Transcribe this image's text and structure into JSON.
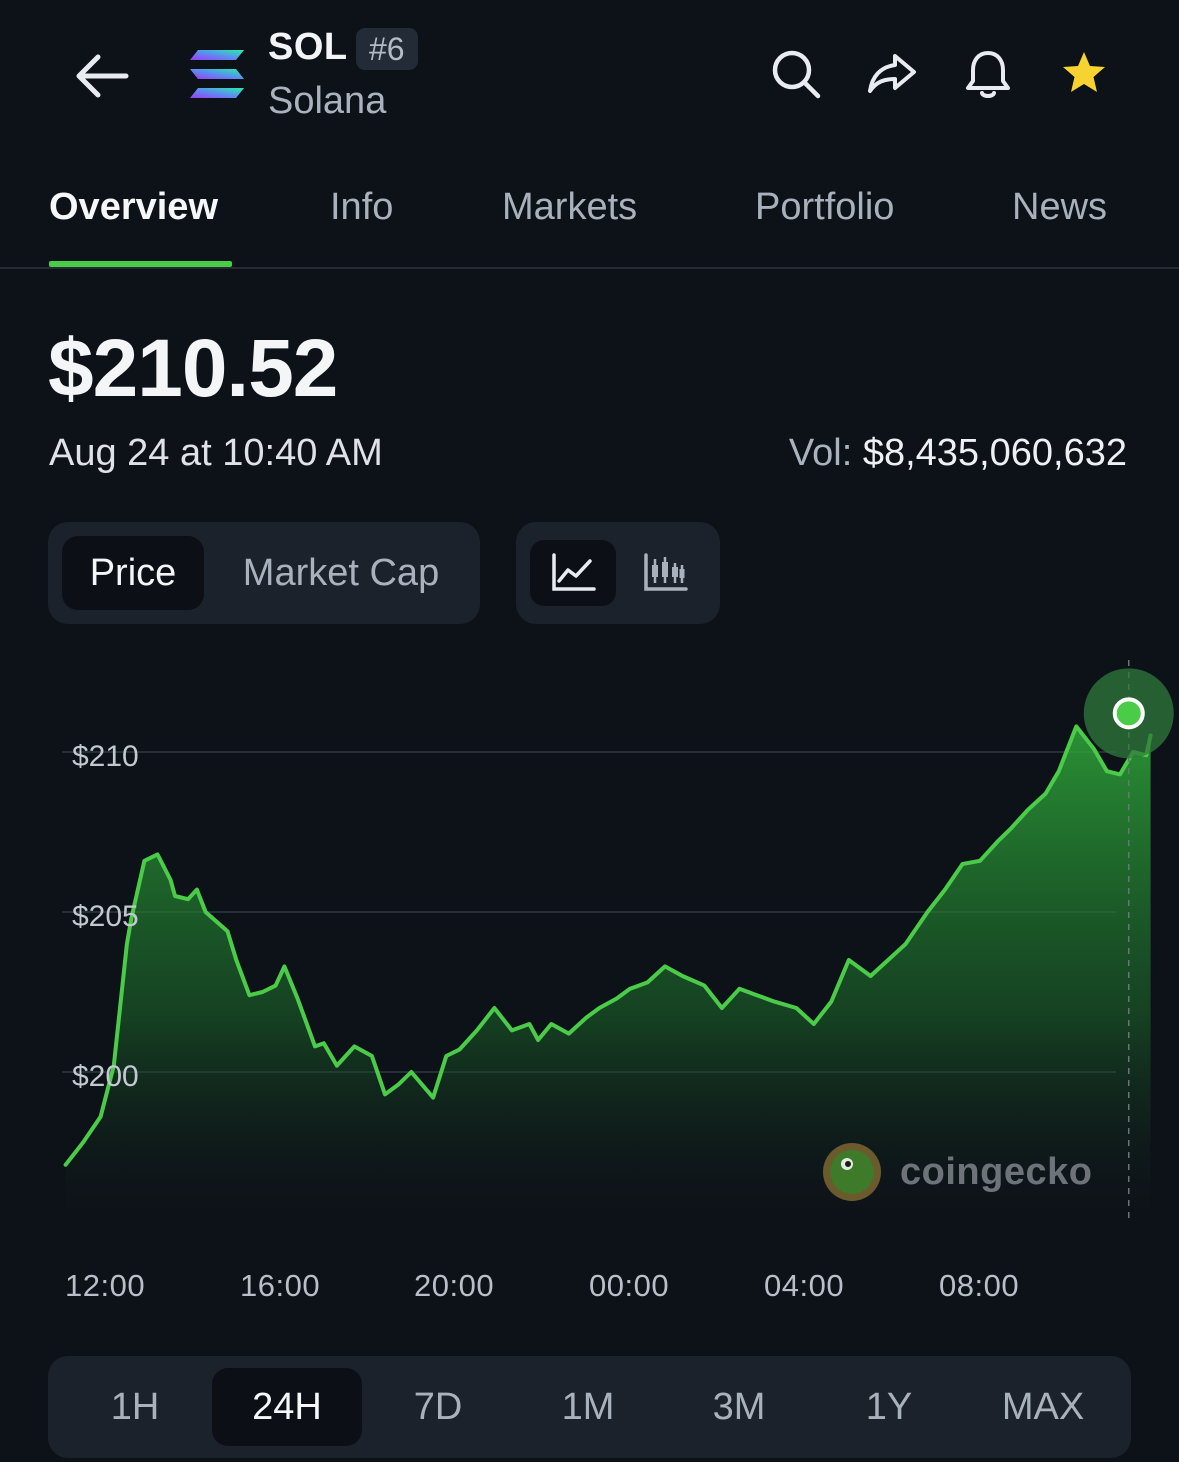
{
  "header": {
    "ticker": "SOL",
    "rank": "#6",
    "name": "Solana",
    "icons": [
      "back-arrow-icon",
      "search-icon",
      "share-icon",
      "bell-icon",
      "star-icon"
    ],
    "favorite_color": "#f7d331"
  },
  "tabs": [
    {
      "label": "Overview",
      "active": true
    },
    {
      "label": "Info",
      "active": false
    },
    {
      "label": "Markets",
      "active": false
    },
    {
      "label": "Portfolio",
      "active": false
    },
    {
      "label": "News",
      "active": false
    }
  ],
  "price": {
    "value": "$210.52",
    "timestamp": "Aug 24 at 10:40 AM",
    "vol_label": "Vol:",
    "vol_value": "$8,435,060,632"
  },
  "metric_toggle": {
    "options": [
      "Price",
      "Market Cap"
    ],
    "selected": "Price"
  },
  "chart_style_toggle": {
    "options": [
      "line-chart-icon",
      "candlestick-chart-icon"
    ],
    "selected": "line-chart-icon"
  },
  "chart_data": {
    "type": "area",
    "title": "",
    "xlabel": "",
    "ylabel": "",
    "y_tick_labels": [
      "$210",
      "$205",
      "$200"
    ],
    "y_ticks": [
      210,
      205,
      200
    ],
    "x_tick_labels": [
      "12:00",
      "16:00",
      "20:00",
      "00:00",
      "04:00",
      "08:00"
    ],
    "x_ticks_hours": [
      0,
      4,
      8,
      12,
      16,
      20
    ],
    "ylim": [
      196.8,
      212
    ],
    "xlim_hours": [
      0,
      23.9
    ],
    "grid": true,
    "color": "#4bcc48",
    "series": [
      {
        "x_hours": [
          -0.9,
          -0.5,
          -0.1,
          0.2,
          0.5,
          0.6,
          0.9,
          1.2,
          1.5,
          1.6,
          1.9,
          2.1,
          2.3,
          2.8,
          3.0,
          3.3,
          3.6,
          3.9,
          4.1,
          4.4,
          4.8,
          5.0,
          5.3,
          5.7,
          6.1,
          6.4,
          6.7,
          7.0,
          7.5,
          7.8,
          8.1,
          8.5,
          8.9,
          9.3,
          9.7,
          9.9,
          10.2,
          10.6,
          11.0,
          11.3,
          11.7,
          12.0,
          12.4,
          12.8,
          13.2,
          13.7,
          14.1,
          14.5,
          14.9,
          15.3,
          15.8,
          16.2,
          16.6,
          17.0,
          17.5,
          17.9,
          18.3,
          18.8,
          19.2,
          19.6,
          20.0,
          20.4,
          20.7,
          21.1,
          21.5,
          21.8,
          22.2,
          22.6,
          22.9,
          23.2,
          23.5,
          23.8,
          23.9
        ],
        "values": [
          197.1,
          197.8,
          198.6,
          200.2,
          204.0,
          204.8,
          206.6,
          206.8,
          206.0,
          205.5,
          205.4,
          205.7,
          205.0,
          204.4,
          203.5,
          202.4,
          202.5,
          202.7,
          203.3,
          202.3,
          200.8,
          200.9,
          200.2,
          200.8,
          200.5,
          199.3,
          199.6,
          200.0,
          199.2,
          200.5,
          200.7,
          201.3,
          202.0,
          201.3,
          201.5,
          201.0,
          201.5,
          201.2,
          201.7,
          202.0,
          202.3,
          202.6,
          202.8,
          203.3,
          203.0,
          202.7,
          202.0,
          202.6,
          202.4,
          202.2,
          202.0,
          201.5,
          202.2,
          203.5,
          203.0,
          203.5,
          204.0,
          205.0,
          205.7,
          206.5,
          206.6,
          207.2,
          207.6,
          208.2,
          208.7,
          209.4,
          210.8,
          210.1,
          209.4,
          209.3,
          210.0,
          209.9,
          210.52
        ]
      }
    ],
    "current_point": {
      "x_hours": 23.4,
      "value": 210.52
    }
  },
  "watermark": "coingecko",
  "range_selector": {
    "options": [
      "1H",
      "24H",
      "7D",
      "1M",
      "3M",
      "1Y",
      "MAX"
    ],
    "selected": "24H"
  }
}
